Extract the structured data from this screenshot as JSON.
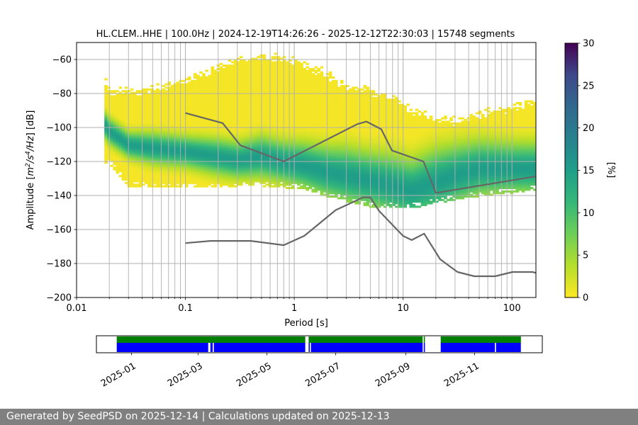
{
  "chart_data": [
    {
      "type": "heatmap",
      "title": "HL.CLEM..HHE | 100.0Hz | 2024-12-19T14:26:26 - 2025-12-12T22:30:03 | 15748 segments",
      "xlabel": "Period [s]",
      "ylabel": "Amplitude [m²/s⁴/Hz] [dB]",
      "xscale": "log",
      "xlim": [
        0.01,
        166
      ],
      "ylim": [
        -200,
        -50
      ],
      "x_ticks": [
        0.01,
        0.1,
        1,
        10,
        100
      ],
      "x_tick_labels": [
        "0.01",
        "0.1",
        "1",
        "10",
        "100"
      ],
      "y_ticks": [
        -200,
        -180,
        -160,
        -140,
        -120,
        -100,
        -80,
        -60
      ],
      "y_tick_labels": [
        "−200",
        "−180",
        "−160",
        "−140",
        "−120",
        "−100",
        "−80",
        "−60"
      ],
      "grid": true,
      "colorbar": {
        "label": "[%]",
        "range": [
          0,
          30
        ],
        "ticks": [
          0,
          5,
          10,
          15,
          20,
          25,
          30
        ],
        "tick_labels": [
          "0",
          "5",
          "10",
          "15",
          "20",
          "25",
          "30"
        ],
        "colormap": "viridis_r"
      },
      "ppsd_density": {
        "periods": [
          0.018,
          0.02,
          0.03,
          0.05,
          0.1,
          0.2,
          0.3,
          0.5,
          0.8,
          1.2,
          2,
          3,
          5,
          8,
          12,
          20,
          30,
          50,
          100,
          166
        ],
        "mode_db": [
          -98,
          -102,
          -110,
          -112,
          -114,
          -117,
          -119,
          -117,
          -120,
          -122,
          -126,
          -128,
          -131,
          -134,
          -137,
          -132,
          -128,
          -124,
          -124,
          -124
        ],
        "upper_db": [
          -68,
          -76,
          -76,
          -75,
          -70,
          -62,
          -58,
          -56,
          -57,
          -60,
          -66,
          -74,
          -76,
          -80,
          -88,
          -92,
          -94,
          -90,
          -86,
          -82
        ],
        "lower_db": [
          -121,
          -121,
          -134,
          -135,
          -135,
          -135,
          -134,
          -134,
          -135,
          -136,
          -140,
          -143,
          -146,
          -147,
          -147,
          -144,
          -142,
          -140,
          -138,
          -136
        ],
        "core_halfwidth_db": [
          5,
          5,
          5,
          6,
          6,
          7,
          7,
          8,
          8,
          9,
          10,
          11,
          11,
          12,
          12,
          13,
          12,
          11,
          10,
          10
        ]
      },
      "series": [
        {
          "x": [
            0.1,
            0.22,
            0.32,
            0.8,
            3.8,
            4.6,
            6.3,
            7.9,
            15.4,
            20,
            166
          ],
          "y": [
            -91.5,
            -97.4,
            -110.5,
            -120,
            -98,
            -96.5,
            -101,
            -113.5,
            -120,
            -138.5,
            -128.7
          ]
        },
        {
          "x": [
            0.1,
            0.17,
            0.4,
            0.8,
            1.24,
            2.4,
            4.3,
            5,
            6,
            10,
            12,
            15.6,
            21.9,
            31.6,
            45,
            70,
            101,
            154,
            166
          ],
          "y": [
            -168,
            -166.7,
            -166.7,
            -169.2,
            -163.7,
            -148.6,
            -141.1,
            -141.1,
            -149,
            -163.8,
            -166.2,
            -162.4,
            -177.5,
            -185,
            -187.5,
            -187.5,
            -185,
            -185,
            -185.5
          ]
        }
      ]
    },
    {
      "type": "timeline",
      "x_tick_labels": [
        "2025-01",
        "2025-03",
        "2025-05",
        "2025-07",
        "2025-09",
        "2025-11"
      ],
      "x_tick_dates": [
        "2025-01-01",
        "2025-03-01",
        "2025-05-01",
        "2025-07-01",
        "2025-09-01",
        "2025-11-01"
      ],
      "xlim": [
        "2024-12-01",
        "2025-12-31"
      ],
      "rows": [
        {
          "color": "#008000",
          "intervals": [
            [
              "2024-12-19",
              "2025-06-04"
            ],
            [
              "2025-06-07",
              "2025-09-16"
            ],
            [
              "2025-09-17",
              "2025-09-18"
            ],
            [
              "2025-10-02",
              "2025-12-12"
            ]
          ]
        },
        {
          "color": "#0000ff",
          "intervals": [
            [
              "2024-12-19",
              "2025-03-10"
            ],
            [
              "2025-03-12",
              "2025-03-14"
            ],
            [
              "2025-03-15",
              "2025-06-04"
            ],
            [
              "2025-06-07",
              "2025-06-08"
            ],
            [
              "2025-06-09",
              "2025-09-16"
            ],
            [
              "2025-09-17",
              "2025-09-18"
            ],
            [
              "2025-10-02",
              "2025-11-19"
            ],
            [
              "2025-11-20",
              "2025-12-12"
            ]
          ]
        }
      ]
    }
  ],
  "footer": {
    "text": "Generated by SeedPSD on 2025-12-14 | Calculations updated on 2025-12-13"
  },
  "colors": {
    "line": "#666666",
    "grid": "#b0b0b0",
    "footer_bg": "#808080",
    "green": "#008000",
    "blue": "#0000ff"
  }
}
